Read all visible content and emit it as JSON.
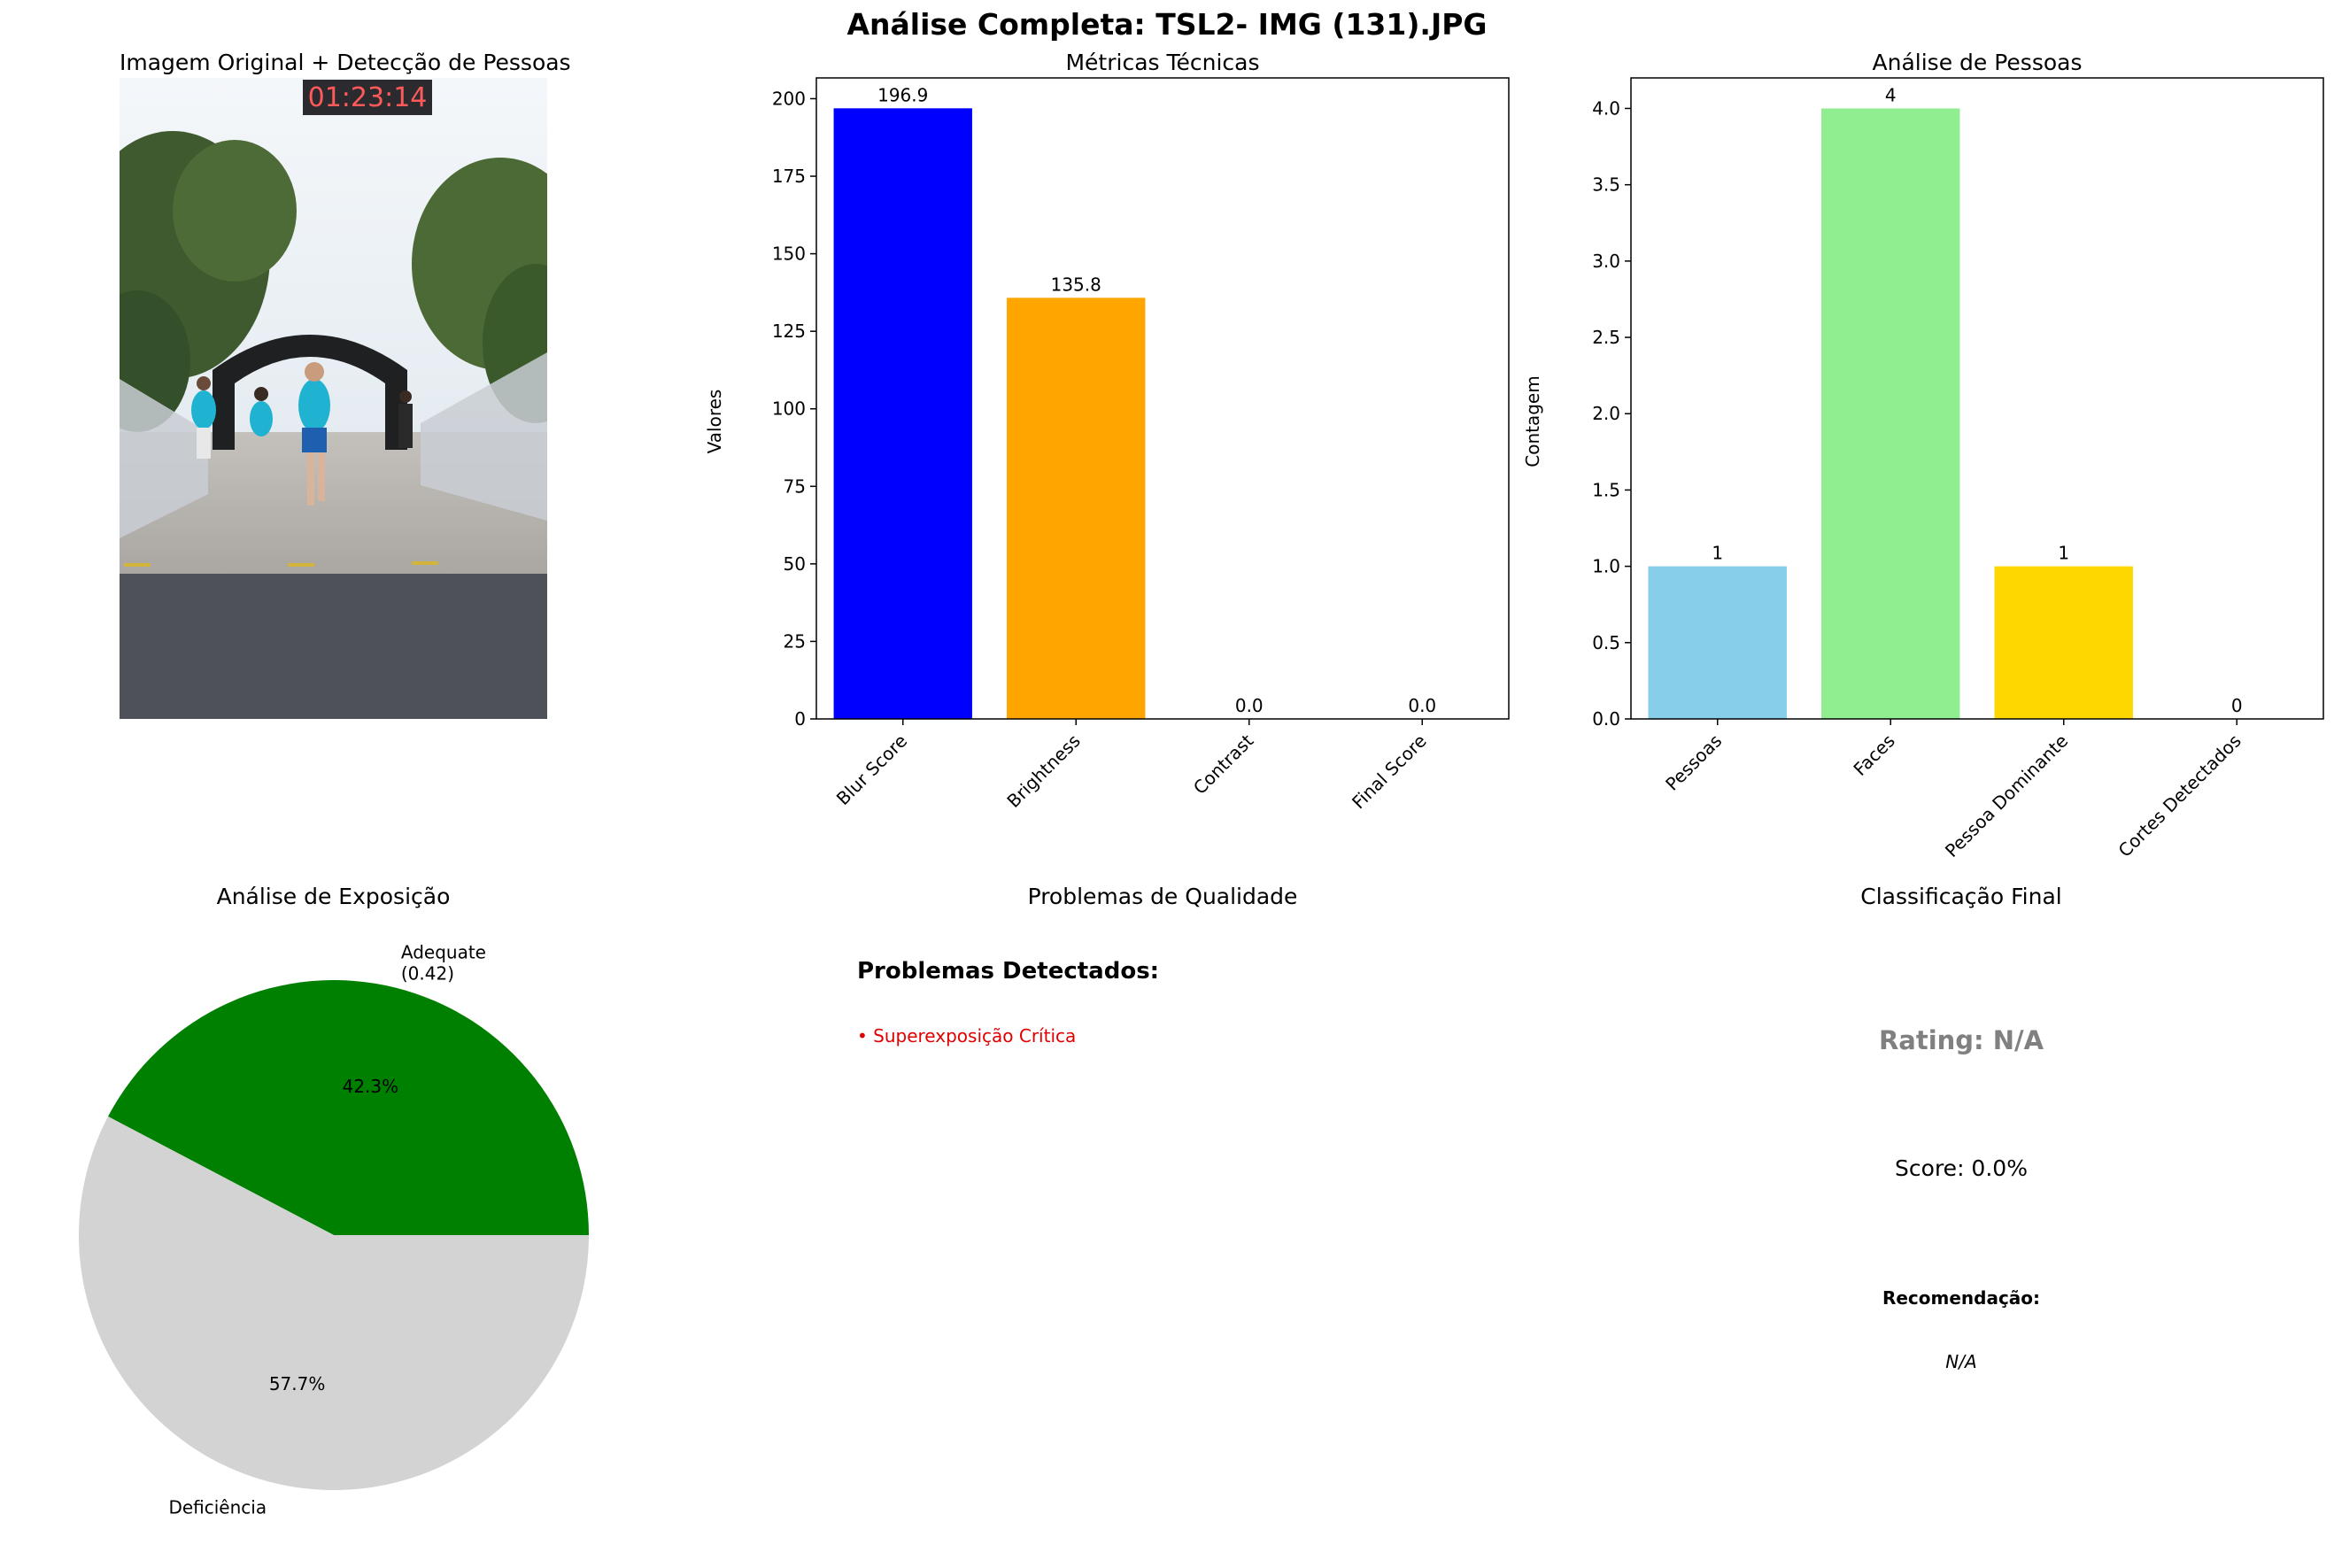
{
  "suptitle": "Análise Completa: TSL2- IMG  (131).JPG",
  "panels": {
    "image": {
      "title": "Imagem Original + Detecção de Pessoas",
      "clock_text": "01:23:14"
    },
    "issues": {
      "title": "Problemas de Qualidade",
      "heading": "Problemas Detectados:",
      "items": [
        "• Superexposição Crítica"
      ],
      "item_color": "#e00000"
    },
    "final": {
      "title": "Classificação Final",
      "rating": "Rating: N/A",
      "score": "Score: 0.0%",
      "rec_label": "Recomendação:",
      "rec_value": "N/A"
    }
  },
  "chart_data": [
    {
      "id": "metrics",
      "type": "bar",
      "title": "Métricas Técnicas",
      "xlabel": "",
      "ylabel": "Valores",
      "categories": [
        "Blur Score",
        "Brightness",
        "Contrast",
        "Final Score"
      ],
      "values": [
        196.9,
        135.8,
        0.0,
        0.0
      ],
      "labels": [
        "196.9",
        "135.8",
        "0.0",
        "0.0"
      ],
      "colors": [
        "#0000ff",
        "#ffa500",
        "#ff0000",
        "#008000"
      ],
      "ylim": [
        0,
        206.7
      ],
      "yticks": [
        0,
        25,
        50,
        75,
        100,
        125,
        150,
        175,
        200
      ],
      "ytick_labels": [
        "0",
        "25",
        "50",
        "75",
        "100",
        "125",
        "150",
        "175",
        "200"
      ]
    },
    {
      "id": "people",
      "type": "bar",
      "title": "Análise de Pessoas",
      "xlabel": "",
      "ylabel": "Contagem",
      "categories": [
        "Pessoas",
        "Faces",
        "Pessoa Dominante",
        "Cortes Detectados"
      ],
      "values": [
        1,
        4,
        1,
        0
      ],
      "labels": [
        "1",
        "4",
        "1",
        "0"
      ],
      "colors": [
        "#87ceeb",
        "#90ee90",
        "#ffd700",
        "#ff0000"
      ],
      "ylim": [
        0,
        4.2
      ],
      "yticks": [
        0,
        0.5,
        1.0,
        1.5,
        2.0,
        2.5,
        3.0,
        3.5,
        4.0
      ],
      "ytick_labels": [
        "0.0",
        "0.5",
        "1.0",
        "1.5",
        "2.0",
        "2.5",
        "3.0",
        "3.5",
        "4.0"
      ]
    },
    {
      "id": "exposure",
      "type": "pie",
      "title": "Análise de Exposição",
      "categories": [
        "Adequate\n(0.42)",
        "Deficiência"
      ],
      "values": [
        42.3,
        57.7
      ],
      "labels": [
        "42.3%",
        "57.7%"
      ],
      "colors": [
        "#008000",
        "#d3d3d3"
      ]
    }
  ]
}
